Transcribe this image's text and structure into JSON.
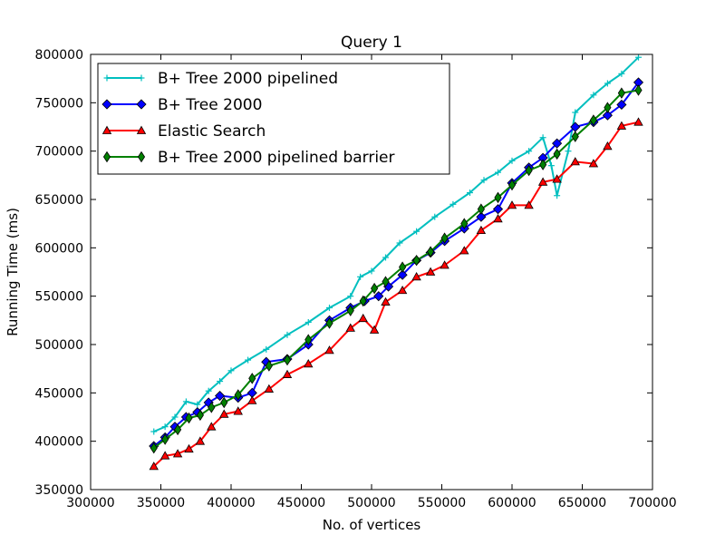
{
  "chart_data": {
    "type": "line",
    "title": "Query 1",
    "xlabel": "No. of vertices",
    "ylabel": "Running Time (ms)",
    "xlim": [
      300000,
      700000
    ],
    "ylim": [
      350000,
      800000
    ],
    "xticks": [
      300000,
      350000,
      400000,
      450000,
      500000,
      550000,
      600000,
      650000,
      700000
    ],
    "yticks": [
      350000,
      400000,
      450000,
      500000,
      550000,
      600000,
      650000,
      700000,
      750000,
      800000
    ],
    "grid": false,
    "legend_position": "top-left",
    "series": [
      {
        "name": "B+ Tree 2000 pipelined",
        "color": "#00bfbf",
        "marker": "plus",
        "points": [
          [
            345000,
            410000
          ],
          [
            353000,
            415000
          ],
          [
            360000,
            425000
          ],
          [
            368000,
            441000
          ],
          [
            376000,
            438000
          ],
          [
            384000,
            452000
          ],
          [
            392000,
            462000
          ],
          [
            400000,
            473000
          ],
          [
            412000,
            484000
          ],
          [
            425000,
            495000
          ],
          [
            440000,
            510000
          ],
          [
            455000,
            523000
          ],
          [
            470000,
            538000
          ],
          [
            485000,
            550000
          ],
          [
            492000,
            570000
          ],
          [
            500000,
            576000
          ],
          [
            510000,
            590000
          ],
          [
            520000,
            605000
          ],
          [
            532000,
            617000
          ],
          [
            545000,
            632000
          ],
          [
            558000,
            645000
          ],
          [
            570000,
            657000
          ],
          [
            580000,
            670000
          ],
          [
            590000,
            678000
          ],
          [
            600000,
            690000
          ],
          [
            612000,
            700000
          ],
          [
            622000,
            714000
          ],
          [
            628000,
            685000
          ],
          [
            632000,
            654000
          ],
          [
            640000,
            700000
          ],
          [
            645000,
            740000
          ],
          [
            658000,
            758000
          ],
          [
            668000,
            770000
          ],
          [
            678000,
            780000
          ],
          [
            690000,
            797000
          ]
        ]
      },
      {
        "name": "B+ Tree 2000",
        "color": "#0000ff",
        "marker": "diamond",
        "points": [
          [
            345000,
            395000
          ],
          [
            353000,
            404000
          ],
          [
            360000,
            415000
          ],
          [
            368000,
            425000
          ],
          [
            376000,
            430000
          ],
          [
            384000,
            440000
          ],
          [
            392000,
            447000
          ],
          [
            405000,
            445000
          ],
          [
            415000,
            450000
          ],
          [
            425000,
            482000
          ],
          [
            440000,
            485000
          ],
          [
            455000,
            500000
          ],
          [
            470000,
            525000
          ],
          [
            485000,
            538000
          ],
          [
            495000,
            545000
          ],
          [
            505000,
            550000
          ],
          [
            512000,
            560000
          ],
          [
            522000,
            572000
          ],
          [
            532000,
            587000
          ],
          [
            542000,
            595000
          ],
          [
            552000,
            607000
          ],
          [
            566000,
            620000
          ],
          [
            578000,
            632000
          ],
          [
            590000,
            640000
          ],
          [
            600000,
            667000
          ],
          [
            612000,
            683000
          ],
          [
            622000,
            693000
          ],
          [
            632000,
            708000
          ],
          [
            645000,
            725000
          ],
          [
            658000,
            730000
          ],
          [
            668000,
            737000
          ],
          [
            678000,
            748000
          ],
          [
            690000,
            771000
          ]
        ]
      },
      {
        "name": "Elastic Search",
        "color": "#ff0000",
        "marker": "triangle",
        "points": [
          [
            345000,
            374000
          ],
          [
            353000,
            385000
          ],
          [
            362000,
            387000
          ],
          [
            370000,
            392000
          ],
          [
            378000,
            400000
          ],
          [
            386000,
            415000
          ],
          [
            395000,
            428000
          ],
          [
            405000,
            431000
          ],
          [
            415000,
            442000
          ],
          [
            427000,
            454000
          ],
          [
            440000,
            469000
          ],
          [
            455000,
            480000
          ],
          [
            470000,
            494000
          ],
          [
            485000,
            517000
          ],
          [
            494000,
            527000
          ],
          [
            502000,
            515000
          ],
          [
            510000,
            544000
          ],
          [
            522000,
            556000
          ],
          [
            532000,
            570000
          ],
          [
            542000,
            575000
          ],
          [
            552000,
            582000
          ],
          [
            566000,
            597000
          ],
          [
            578000,
            618000
          ],
          [
            590000,
            630000
          ],
          [
            600000,
            644000
          ],
          [
            612000,
            644000
          ],
          [
            622000,
            668000
          ],
          [
            632000,
            671000
          ],
          [
            645000,
            689000
          ],
          [
            658000,
            687000
          ],
          [
            668000,
            705000
          ],
          [
            678000,
            726000
          ],
          [
            690000,
            730000
          ]
        ]
      },
      {
        "name": "B+ Tree 2000 pipelined barrier",
        "color": "#008000",
        "marker": "thin-diamond",
        "points": [
          [
            345000,
            393000
          ],
          [
            353000,
            402000
          ],
          [
            362000,
            412000
          ],
          [
            370000,
            424000
          ],
          [
            378000,
            427000
          ],
          [
            386000,
            435000
          ],
          [
            395000,
            440000
          ],
          [
            405000,
            448000
          ],
          [
            415000,
            465000
          ],
          [
            427000,
            478000
          ],
          [
            440000,
            484000
          ],
          [
            455000,
            505000
          ],
          [
            470000,
            522000
          ],
          [
            485000,
            535000
          ],
          [
            494000,
            545000
          ],
          [
            502000,
            558000
          ],
          [
            510000,
            565000
          ],
          [
            522000,
            580000
          ],
          [
            532000,
            587000
          ],
          [
            542000,
            596000
          ],
          [
            552000,
            610000
          ],
          [
            566000,
            625000
          ],
          [
            578000,
            640000
          ],
          [
            590000,
            652000
          ],
          [
            600000,
            665000
          ],
          [
            612000,
            680000
          ],
          [
            622000,
            686000
          ],
          [
            632000,
            697000
          ],
          [
            645000,
            715000
          ],
          [
            658000,
            732000
          ],
          [
            668000,
            745000
          ],
          [
            678000,
            760000
          ],
          [
            690000,
            763000
          ]
        ]
      }
    ]
  }
}
